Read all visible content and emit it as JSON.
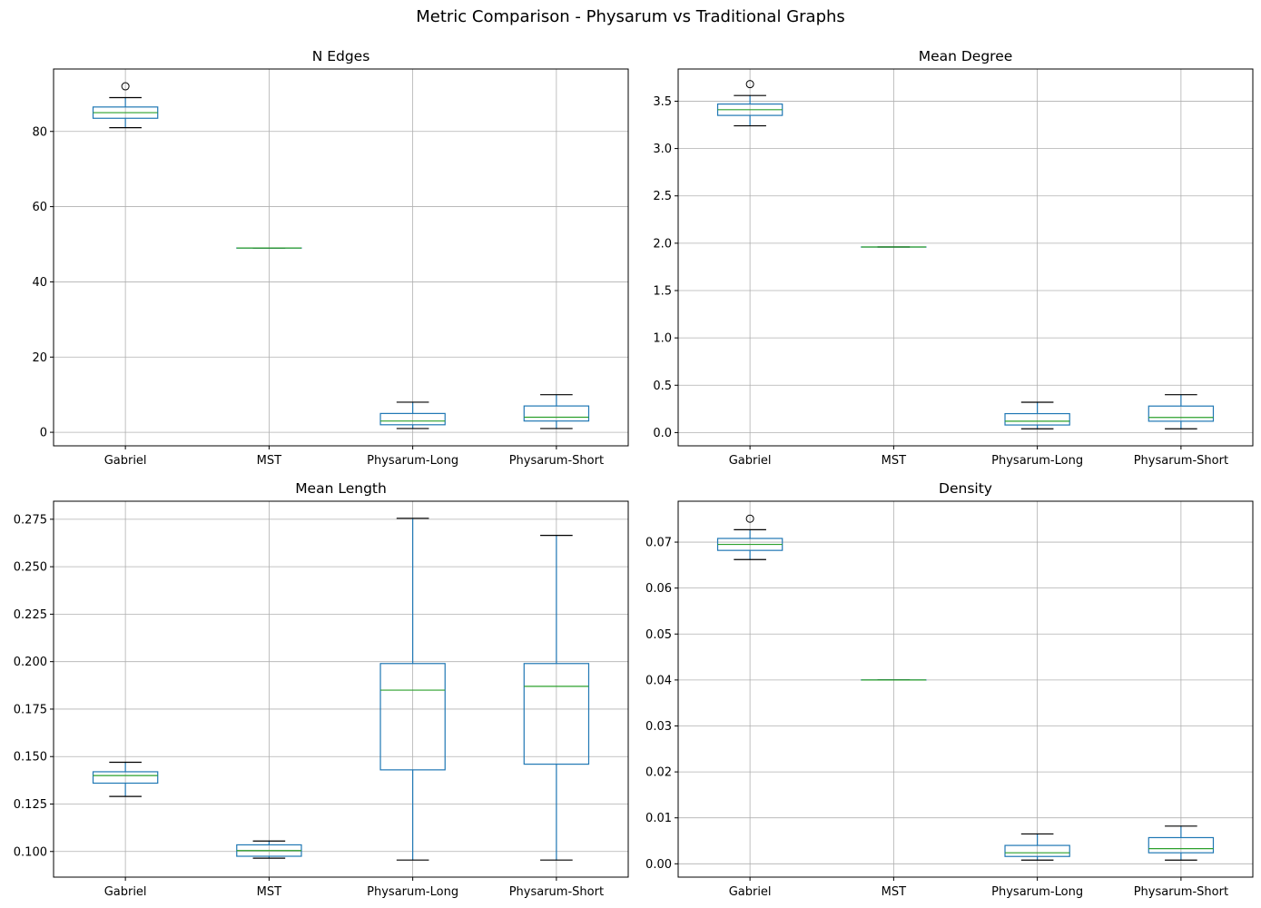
{
  "figure": {
    "title": "Metric Comparison - Physarum vs Traditional Graphs"
  },
  "chart_data": [
    {
      "type": "box",
      "title": "N Edges",
      "categories": [
        "Gabriel",
        "MST",
        "Physarum-Long",
        "Physarum-Short"
      ],
      "ylim": [
        -3.6,
        96.6
      ],
      "yticks": [
        0,
        20,
        40,
        60,
        80
      ],
      "yticklabels": [
        "0",
        "20",
        "40",
        "60",
        "80"
      ],
      "grid": true,
      "boxes": [
        {
          "whislo": 81,
          "q1": 83.5,
          "med": 85,
          "q3": 86.5,
          "whishi": 89,
          "fliers": [
            92
          ]
        },
        {
          "whislo": 49,
          "q1": 49,
          "med": 49,
          "q3": 49,
          "whishi": 49,
          "fliers": []
        },
        {
          "whislo": 1,
          "q1": 2,
          "med": 3,
          "q3": 5,
          "whishi": 8,
          "fliers": []
        },
        {
          "whislo": 1,
          "q1": 3,
          "med": 4,
          "q3": 7,
          "whishi": 10,
          "fliers": []
        }
      ]
    },
    {
      "type": "box",
      "title": "Mean Degree",
      "categories": [
        "Gabriel",
        "MST",
        "Physarum-Long",
        "Physarum-Short"
      ],
      "ylim": [
        -0.14,
        3.84
      ],
      "yticks": [
        0.0,
        0.5,
        1.0,
        1.5,
        2.0,
        2.5,
        3.0,
        3.5
      ],
      "yticklabels": [
        "0.0",
        "0.5",
        "1.0",
        "1.5",
        "2.0",
        "2.5",
        "3.0",
        "3.5"
      ],
      "grid": true,
      "boxes": [
        {
          "whislo": 3.24,
          "q1": 3.35,
          "med": 3.41,
          "q3": 3.47,
          "whishi": 3.56,
          "fliers": [
            3.68
          ]
        },
        {
          "whislo": 1.96,
          "q1": 1.96,
          "med": 1.96,
          "q3": 1.96,
          "whishi": 1.96,
          "fliers": []
        },
        {
          "whislo": 0.04,
          "q1": 0.08,
          "med": 0.12,
          "q3": 0.2,
          "whishi": 0.32,
          "fliers": []
        },
        {
          "whislo": 0.04,
          "q1": 0.12,
          "med": 0.16,
          "q3": 0.28,
          "whishi": 0.4,
          "fliers": []
        }
      ]
    },
    {
      "type": "box",
      "title": "Mean Length",
      "categories": [
        "Gabriel",
        "MST",
        "Physarum-Long",
        "Physarum-Short"
      ],
      "ylim": [
        0.0865,
        0.2845
      ],
      "yticks": [
        0.1,
        0.125,
        0.15,
        0.175,
        0.2,
        0.225,
        0.25,
        0.275
      ],
      "yticklabels": [
        "0.100",
        "0.125",
        "0.150",
        "0.175",
        "0.200",
        "0.225",
        "0.250",
        "0.275"
      ],
      "grid": true,
      "boxes": [
        {
          "whislo": 0.129,
          "q1": 0.136,
          "med": 0.14,
          "q3": 0.142,
          "whishi": 0.147,
          "fliers": []
        },
        {
          "whislo": 0.0965,
          "q1": 0.0975,
          "med": 0.1005,
          "q3": 0.1035,
          "whishi": 0.1055,
          "fliers": []
        },
        {
          "whislo": 0.0955,
          "q1": 0.143,
          "med": 0.185,
          "q3": 0.199,
          "whishi": 0.2755,
          "fliers": []
        },
        {
          "whislo": 0.0955,
          "q1": 0.146,
          "med": 0.187,
          "q3": 0.199,
          "whishi": 0.2665,
          "fliers": []
        }
      ]
    },
    {
      "type": "box",
      "title": "Density",
      "categories": [
        "Gabriel",
        "MST",
        "Physarum-Long",
        "Physarum-Short"
      ],
      "ylim": [
        -0.0029,
        0.0789
      ],
      "yticks": [
        0.0,
        0.01,
        0.02,
        0.03,
        0.04,
        0.05,
        0.06,
        0.07
      ],
      "yticklabels": [
        "0.00",
        "0.01",
        "0.02",
        "0.03",
        "0.04",
        "0.05",
        "0.06",
        "0.07"
      ],
      "grid": true,
      "boxes": [
        {
          "whislo": 0.0662,
          "q1": 0.0682,
          "med": 0.0695,
          "q3": 0.0708,
          "whishi": 0.0727,
          "fliers": [
            0.0751
          ]
        },
        {
          "whislo": 0.04,
          "q1": 0.04,
          "med": 0.04,
          "q3": 0.04,
          "whishi": 0.04,
          "fliers": []
        },
        {
          "whislo": 0.0008,
          "q1": 0.0016,
          "med": 0.0024,
          "q3": 0.004,
          "whishi": 0.0065,
          "fliers": []
        },
        {
          "whislo": 0.0008,
          "q1": 0.0024,
          "med": 0.0033,
          "q3": 0.0057,
          "whishi": 0.0082,
          "fliers": []
        }
      ]
    }
  ],
  "colors": {
    "box": "#1f77b4",
    "median": "#2ca02c",
    "whisker": "#1f77b4",
    "cap": "#000000",
    "flier": "#000000",
    "grid": "#b0b0b0",
    "spine": "#000000"
  }
}
